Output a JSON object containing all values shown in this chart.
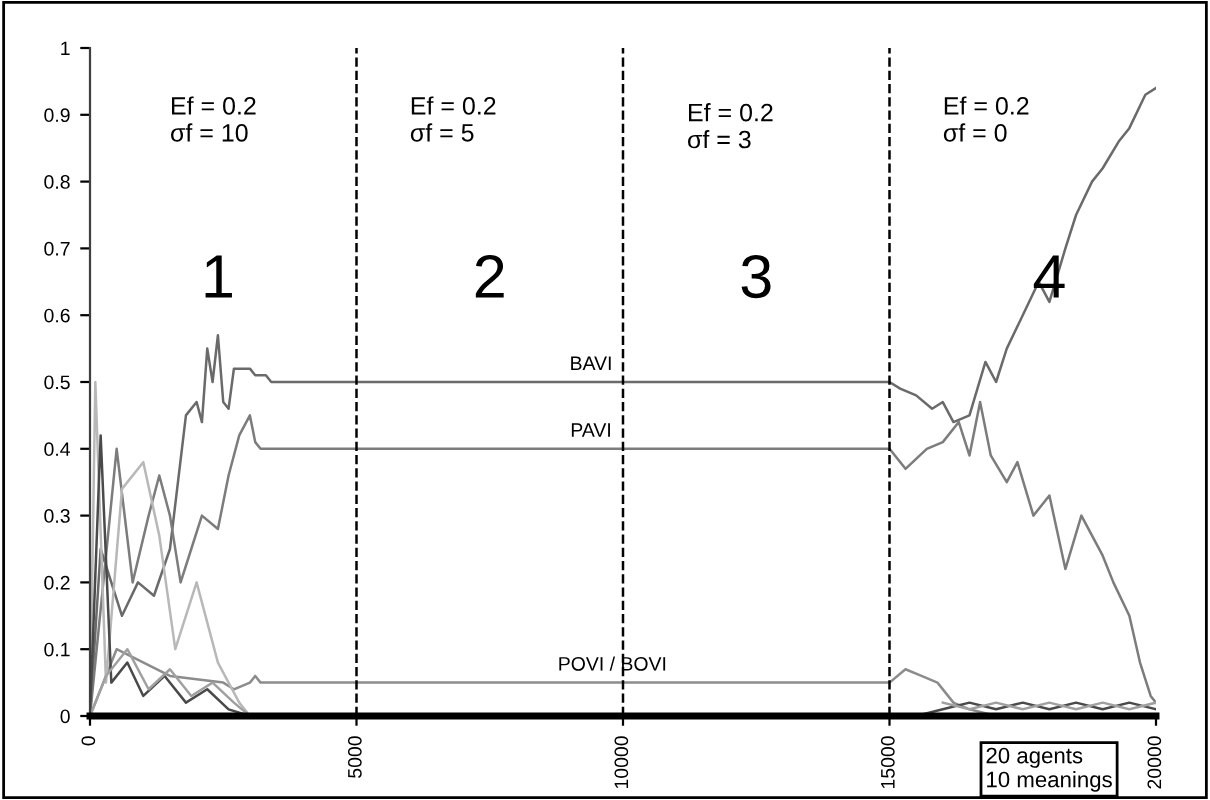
{
  "chart_data": {
    "type": "line",
    "xlim": [
      0,
      20000
    ],
    "xticks": [
      0,
      5000,
      10000,
      15000,
      20000
    ],
    "ylim": [
      0,
      1
    ],
    "yticks": [
      0,
      0.1,
      0.2,
      0.3,
      0.4,
      0.5,
      0.6,
      0.7,
      0.8,
      0.9,
      1
    ],
    "grid": false,
    "legend": false,
    "marker": "none",
    "line_style": "solid",
    "series": [
      {
        "name": "BAVI",
        "color": "#6a6a6a",
        "x": [
          0,
          200,
          600,
          900,
          1200,
          1500,
          1800,
          2000,
          2100,
          2200,
          2300,
          2400,
          2500,
          2600,
          2700,
          3000,
          3100,
          3300,
          3400,
          15000,
          15200,
          15500,
          15800,
          16000,
          16200,
          16500,
          16800,
          17000,
          17200,
          17500,
          17800,
          18000,
          18300,
          18500,
          18800,
          19000,
          19300,
          19500,
          19800,
          20000
        ],
        "values": [
          0,
          0.25,
          0.15,
          0.2,
          0.18,
          0.25,
          0.45,
          0.47,
          0.44,
          0.55,
          0.5,
          0.57,
          0.47,
          0.46,
          0.52,
          0.52,
          0.51,
          0.51,
          0.5,
          0.5,
          0.49,
          0.48,
          0.46,
          0.47,
          0.44,
          0.45,
          0.53,
          0.5,
          0.55,
          0.6,
          0.65,
          0.62,
          0.7,
          0.75,
          0.8,
          0.82,
          0.86,
          0.88,
          0.93,
          0.94
        ]
      },
      {
        "name": "PAVI",
        "color": "#7c7c7c",
        "x": [
          0,
          500,
          800,
          1100,
          1300,
          1500,
          1700,
          1900,
          2100,
          2400,
          2600,
          2800,
          3000,
          3100,
          3200,
          15000,
          15300,
          15700,
          16000,
          16300,
          16500,
          16700,
          16900,
          17200,
          17400,
          17700,
          18000,
          18300,
          18600,
          18800,
          19000,
          19200,
          19500,
          19700,
          19900,
          20000
        ],
        "values": [
          0,
          0.4,
          0.2,
          0.3,
          0.36,
          0.3,
          0.2,
          0.25,
          0.3,
          0.28,
          0.36,
          0.42,
          0.45,
          0.41,
          0.4,
          0.4,
          0.37,
          0.4,
          0.41,
          0.44,
          0.39,
          0.47,
          0.39,
          0.35,
          0.38,
          0.3,
          0.33,
          0.22,
          0.3,
          0.27,
          0.24,
          0.2,
          0.15,
          0.08,
          0.03,
          0.02
        ]
      },
      {
        "name": "POVI / BOVI",
        "color": "#8c8c8c",
        "x": [
          0,
          500,
          1500,
          2500,
          2700,
          3000,
          3100,
          3200,
          15000,
          15300,
          15600,
          15900,
          16200,
          16500,
          17000,
          20000
        ],
        "values": [
          0,
          0.1,
          0.06,
          0.05,
          0.04,
          0.05,
          0.06,
          0.05,
          0.05,
          0.07,
          0.06,
          0.05,
          0.02,
          0.01,
          0,
          0
        ]
      },
      {
        "color": "#b8b8b8",
        "x": [
          0,
          100,
          300,
          600,
          1000,
          1300,
          1600,
          2000,
          2400,
          2800,
          3000,
          20000
        ],
        "values": [
          0,
          0.5,
          0.05,
          0.34,
          0.38,
          0.27,
          0.1,
          0.2,
          0.08,
          0.02,
          0,
          0
        ]
      },
      {
        "color": "#4a4a4a",
        "x": [
          0,
          200,
          400,
          700,
          1000,
          1400,
          1800,
          2200,
          2600,
          3000,
          15500,
          16000,
          16500,
          17000,
          17500,
          18000,
          18500,
          19000,
          19500,
          20000
        ],
        "values": [
          0,
          0.42,
          0.05,
          0.08,
          0.03,
          0.06,
          0.02,
          0.04,
          0.01,
          0,
          0,
          0.01,
          0.02,
          0.01,
          0.02,
          0.01,
          0.02,
          0.01,
          0.02,
          0.01
        ]
      },
      {
        "color": "#a0a0a0",
        "x": [
          0,
          300,
          700,
          1100,
          1500,
          1900,
          2300,
          2700,
          3000,
          15500,
          16000,
          16500,
          17000,
          17500,
          18000,
          18500,
          19000,
          19500,
          20000
        ],
        "values": [
          0,
          0.06,
          0.1,
          0.04,
          0.07,
          0.03,
          0.05,
          0.02,
          0,
          null,
          0.02,
          0.01,
          0.02,
          0.01,
          0.02,
          0.01,
          0.02,
          0.01,
          0.02
        ]
      }
    ],
    "ref_lines": [
      {
        "axis": "x",
        "value": 5000,
        "color": "#000000",
        "line_style": "dashed"
      },
      {
        "axis": "x",
        "value": 10000,
        "color": "#000000",
        "line_style": "dashed"
      },
      {
        "axis": "x",
        "value": 15000,
        "color": "#000000",
        "line_style": "dashed"
      }
    ],
    "annotations": [
      "Ef = 0.2\nσf = 10",
      "Ef = 0.2\nσf = 5",
      "Ef = 0.2\nσf = 3",
      "Ef = 0.2\nσf = 0",
      "1",
      "2",
      "3",
      "4",
      "20 agents\n10 meanings"
    ]
  }
}
